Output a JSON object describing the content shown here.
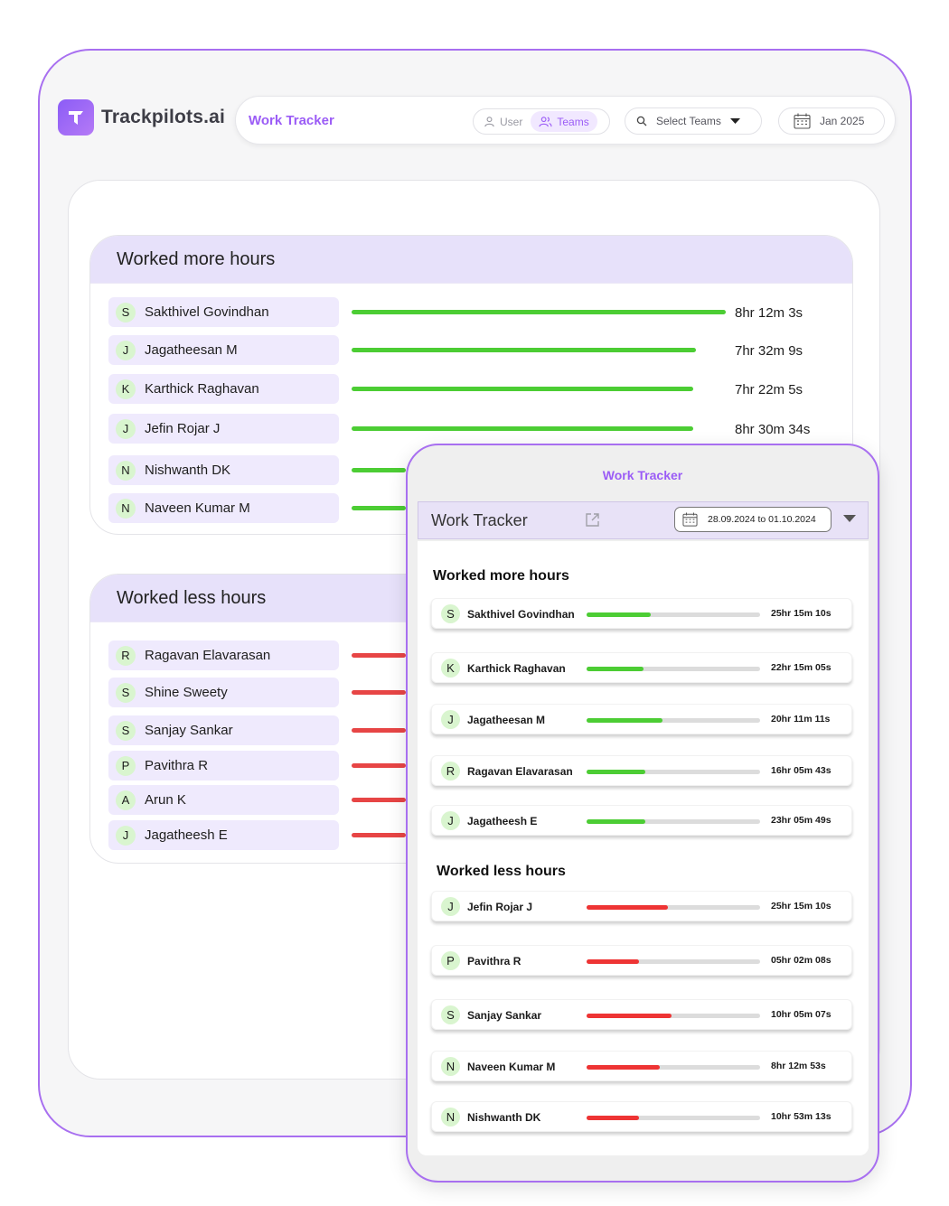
{
  "brand": {
    "name": "Trackpilots.ai",
    "accent": "#9b5cf6"
  },
  "header": {
    "title": "Work Tracker",
    "toggle": {
      "user_label": "User",
      "teams_label": "Teams",
      "active": "Teams"
    },
    "select_teams_label": "Select Teams",
    "month_label": "Jan 2025"
  },
  "more_hours": {
    "title": "Worked more hours",
    "rows": [
      {
        "initial": "S",
        "name": "Sakthivel Govindhan",
        "time": "8hr 12m 3s"
      },
      {
        "initial": "J",
        "name": "Jagatheesan M",
        "time": "7hr 32m 9s"
      },
      {
        "initial": "K",
        "name": "Karthick Raghavan",
        "time": "7hr 22m 5s"
      },
      {
        "initial": "J",
        "name": "Jefin Rojar J",
        "time": "8hr 30m 34s"
      },
      {
        "initial": "N",
        "name": "Nishwanth DK",
        "time": ""
      },
      {
        "initial": "N",
        "name": "Naveen Kumar M",
        "time": ""
      }
    ]
  },
  "less_hours": {
    "title": "Worked less hours",
    "rows": [
      {
        "initial": "R",
        "name": "Ragavan Elavarasan"
      },
      {
        "initial": "S",
        "name": "Shine Sweety"
      },
      {
        "initial": "S",
        "name": "Sanjay Sankar"
      },
      {
        "initial": "P",
        "name": "Pavithra R"
      },
      {
        "initial": "A",
        "name": "Arun K"
      },
      {
        "initial": "J",
        "name": "Jagatheesh E"
      }
    ]
  },
  "mobile": {
    "app_title": "Work Tracker",
    "bar_title": "Work Tracker",
    "date_range": "28.09.2024 to 01.10.2024",
    "more_title": "Worked more hours",
    "more_rows": [
      {
        "initial": "S",
        "name": "Sakthivel Govindhan",
        "time": "25hr 15m 10s",
        "fill": 0.37
      },
      {
        "initial": "K",
        "name": "Karthick Raghavan",
        "time": "22hr 15m 05s",
        "fill": 0.33
      },
      {
        "initial": "J",
        "name": "Jagatheesan M",
        "time": "20hr 11m 11s",
        "fill": 0.44
      },
      {
        "initial": "R",
        "name": "Ragavan Elavarasan",
        "time": "16hr 05m 43s",
        "fill": 0.34
      },
      {
        "initial": "J",
        "name": "Jagatheesh E",
        "time": "23hr 05m 49s",
        "fill": 0.34
      }
    ],
    "less_title": "Worked  less hours",
    "less_rows": [
      {
        "initial": "J",
        "name": "Jefin Rojar J",
        "time": "25hr 15m 10s",
        "fill": 0.47
      },
      {
        "initial": "P",
        "name": "Pavithra R",
        "time": "05hr 02m 08s",
        "fill": 0.3
      },
      {
        "initial": "S",
        "name": "Sanjay Sankar",
        "time": "10hr 05m 07s",
        "fill": 0.49
      },
      {
        "initial": "N",
        "name": "Naveen Kumar M",
        "time": "8hr 12m 53s",
        "fill": 0.42
      },
      {
        "initial": "N",
        "name": "Nishwanth DK",
        "time": "10hr 53m 13s",
        "fill": 0.3
      }
    ]
  },
  "colors": {
    "positive": "#4ccd34",
    "negative": "#e74545",
    "avatar_bg": "#d9f5cf",
    "panel_header": "#e7e1fa"
  }
}
